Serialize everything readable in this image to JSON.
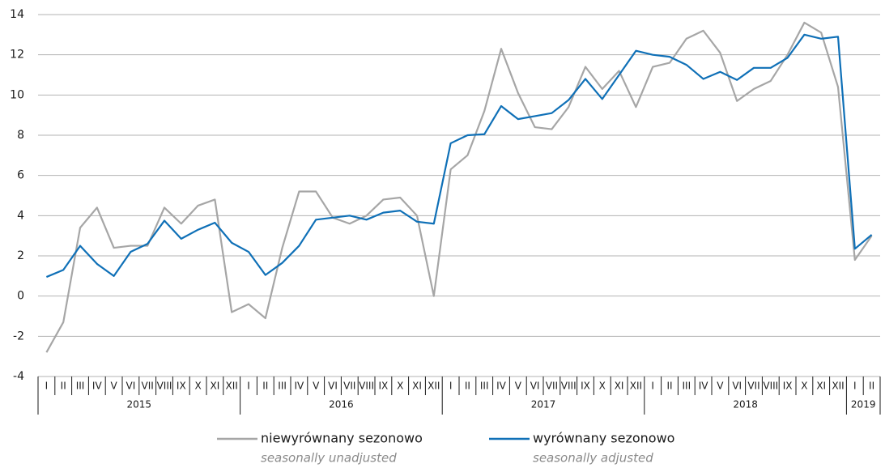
{
  "chart_data": {
    "type": "line",
    "year_groups": [
      {
        "label": "2015",
        "categories": [
          "I",
          "II",
          "III",
          "IV",
          "V",
          "VI",
          "VII",
          "VIII",
          "IX",
          "X",
          "XI",
          "XII"
        ]
      },
      {
        "label": "2016",
        "categories": [
          "I",
          "II",
          "III",
          "IV",
          "V",
          "VI",
          "VII",
          "VIII",
          "IX",
          "X",
          "XI",
          "XII"
        ]
      },
      {
        "label": "2017",
        "categories": [
          "I",
          "II",
          "III",
          "IV",
          "V",
          "VI",
          "VII",
          "VIII",
          "IX",
          "X",
          "XI",
          "XII"
        ]
      },
      {
        "label": "2018",
        "categories": [
          "I",
          "II",
          "III",
          "IV",
          "V",
          "VI",
          "VII",
          "VIII",
          "IX",
          "X",
          "XI",
          "XII"
        ]
      },
      {
        "label": "2019",
        "categories": [
          "I",
          "II"
        ]
      }
    ],
    "series": [
      {
        "name": "niewyrównany sezonowo",
        "name_en": "seasonally unadjusted",
        "color": "#a6a6a6",
        "values": [
          -2.8,
          -1.3,
          3.4,
          4.4,
          2.4,
          2.5,
          2.5,
          4.4,
          3.6,
          4.5,
          4.8,
          -0.8,
          -0.4,
          -1.1,
          2.4,
          5.2,
          5.2,
          3.9,
          3.6,
          4.0,
          4.8,
          4.9,
          4.0,
          0.0,
          6.3,
          7.0,
          9.2,
          12.3,
          10.1,
          8.4,
          8.3,
          9.4,
          11.4,
          10.3,
          11.2,
          9.4,
          11.4,
          11.6,
          12.8,
          13.2,
          12.1,
          9.7,
          10.3,
          10.7,
          12.0,
          13.6,
          13.1,
          10.4,
          1.8,
          3.0
        ]
      },
      {
        "name": "wyrównany sezonowo",
        "name_en": "seasonally adjusted",
        "color": "#0f70b7",
        "values": [
          0.95,
          1.3,
          2.5,
          1.6,
          1.0,
          2.2,
          2.6,
          3.75,
          2.85,
          3.3,
          3.65,
          2.65,
          2.2,
          1.05,
          1.65,
          2.5,
          3.8,
          3.9,
          4.0,
          3.8,
          4.15,
          4.25,
          3.7,
          3.6,
          7.6,
          8.0,
          8.05,
          9.45,
          8.8,
          8.95,
          9.1,
          9.75,
          10.8,
          9.8,
          11.0,
          12.2,
          12.0,
          11.9,
          11.5,
          10.8,
          11.15,
          10.75,
          11.35,
          11.35,
          11.85,
          13.0,
          12.8,
          12.9,
          2.35,
          3.05
        ]
      }
    ],
    "ylim": [
      -4,
      14
    ],
    "yticks": [
      -4,
      -2,
      0,
      2,
      4,
      6,
      8,
      10,
      12,
      14
    ],
    "grid": true
  }
}
